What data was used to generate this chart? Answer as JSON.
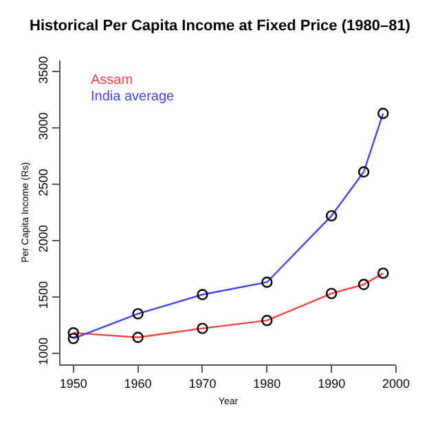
{
  "chart_data": {
    "type": "line",
    "title": "Historical Per Capita Income at Fixed Price (1980–81)",
    "xlabel": "Year",
    "ylabel": "Per Capita Income (Rs)",
    "x": [
      1950,
      1960,
      1970,
      1980,
      1990,
      1995,
      1998
    ],
    "series": [
      {
        "name": "Assam",
        "color": "#ff4040",
        "values": [
          1180,
          1140,
          1220,
          1290,
          1530,
          1610,
          1710
        ]
      },
      {
        "name": "India average",
        "color": "#4040ff",
        "values": [
          1130,
          1350,
          1520,
          1630,
          2220,
          2610,
          3130
        ]
      }
    ],
    "xlim": [
      1948,
      2000
    ],
    "xticks": [
      1950,
      1960,
      1970,
      1980,
      1990,
      2000
    ],
    "ylim": [
      900,
      3600
    ],
    "yticks": [
      1000,
      1500,
      2000,
      2500,
      3000,
      3500
    ],
    "grid": false,
    "legend": "top left",
    "marker": "circle",
    "line_style": "solid"
  }
}
